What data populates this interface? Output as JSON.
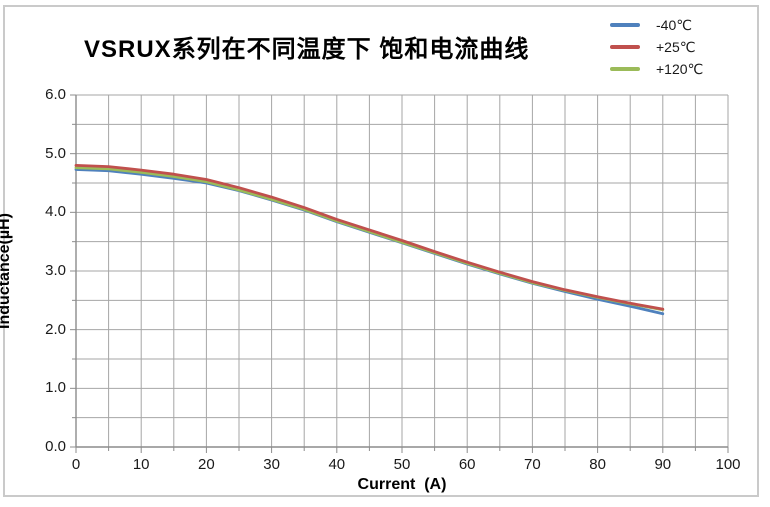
{
  "title": "VSRUX系列在不同温度下 饱和电流曲线",
  "legend": {
    "items": [
      {
        "label": "-40℃",
        "color": "#4F81BD"
      },
      {
        "label": "+25℃",
        "color": "#C0504D"
      },
      {
        "label": "+120℃",
        "color": "#9BBB59"
      }
    ]
  },
  "chart_data": {
    "type": "line",
    "title": "VSRUX系列在不同温度下 饱和电流曲线",
    "xlabel": "Current  (A)",
    "ylabel": "Inductance(µH)",
    "xlim": [
      0,
      100
    ],
    "ylim": [
      0,
      6
    ],
    "x_tick_labels": [
      "0",
      "10",
      "20",
      "30",
      "40",
      "50",
      "60",
      "70",
      "80",
      "90",
      "100"
    ],
    "x_tick_step": 10,
    "y_tick_labels": [
      "0.0",
      "1.0",
      "2.0",
      "3.0",
      "4.0",
      "5.0",
      "6.0"
    ],
    "y_tick_step": 1.0,
    "x_grid_step": 5,
    "y_grid_step": 0.5,
    "grid": true,
    "grid_color": "#a6a6a6",
    "axis_color": "#8c8c8c",
    "legend_position": "top-right",
    "x": [
      0,
      5,
      10,
      15,
      20,
      25,
      30,
      35,
      40,
      45,
      50,
      55,
      60,
      65,
      70,
      75,
      80,
      85,
      90
    ],
    "series": [
      {
        "name": "-40℃",
        "color": "#4F81BD",
        "z": 1,
        "values": [
          4.73,
          4.71,
          4.65,
          4.58,
          4.5,
          4.37,
          4.21,
          4.04,
          3.84,
          3.66,
          3.48,
          3.3,
          3.12,
          2.95,
          2.79,
          2.65,
          2.52,
          2.4,
          2.27
        ]
      },
      {
        "name": "+25℃",
        "color": "#C0504D",
        "z": 3,
        "values": [
          4.8,
          4.78,
          4.72,
          4.65,
          4.56,
          4.42,
          4.26,
          4.08,
          3.88,
          3.7,
          3.52,
          3.33,
          3.15,
          2.98,
          2.82,
          2.68,
          2.56,
          2.45,
          2.35
        ]
      },
      {
        "name": "+120℃",
        "color": "#9BBB59",
        "z": 2,
        "values": [
          4.76,
          4.74,
          4.68,
          4.61,
          4.52,
          4.38,
          4.22,
          4.05,
          3.85,
          3.67,
          3.49,
          3.31,
          3.13,
          2.96,
          2.8,
          2.67,
          2.55,
          2.44,
          2.34
        ]
      }
    ]
  }
}
